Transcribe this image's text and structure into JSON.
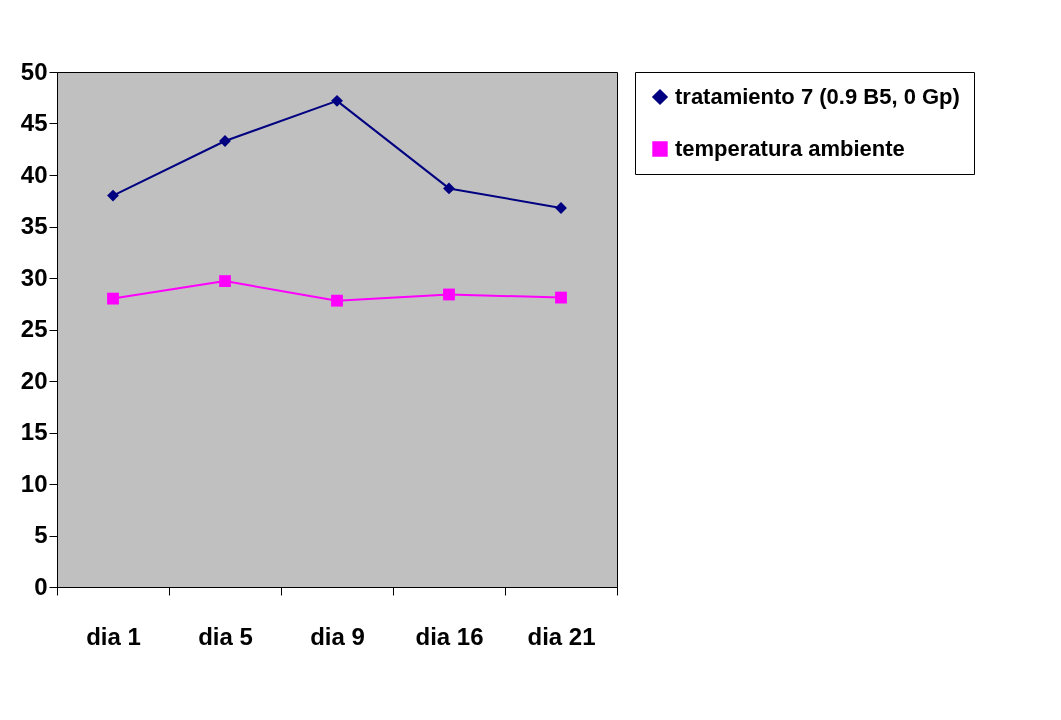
{
  "chart_data": {
    "type": "line",
    "categories": [
      "dia  1",
      "dia  5",
      "dia  9",
      "dia 16",
      "dia 21"
    ],
    "series": [
      {
        "name": "tratamiento 7 (0.9 B5, 0 Gp)",
        "color": "#000080",
        "marker": "diamond",
        "values": [
          38,
          43.3,
          47.2,
          38.7,
          36.8
        ]
      },
      {
        "name": "temperatura ambiente",
        "color": "#ff00ff",
        "marker": "square",
        "values": [
          28,
          29.7,
          27.8,
          28.4,
          28.1
        ]
      }
    ],
    "ylim": [
      0,
      50
    ],
    "yticks": [
      0,
      5,
      10,
      15,
      20,
      25,
      30,
      35,
      40,
      45,
      50
    ],
    "grid": false,
    "legend": "right"
  }
}
